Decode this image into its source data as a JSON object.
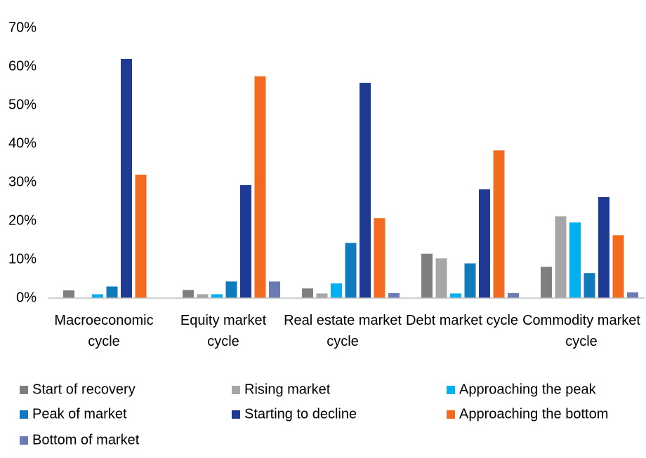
{
  "chart_data": {
    "type": "bar",
    "categories": [
      "Macroeconomic cycle",
      "Equity market cycle",
      "Real estate market cycle",
      "Debt market cycle",
      "Commodity market cycle"
    ],
    "series": [
      {
        "name": "Start of recovery",
        "color": "#7f7f7f",
        "values": [
          2,
          2.1,
          2.5,
          11.5,
          8.1
        ]
      },
      {
        "name": "Rising market",
        "color": "#a6a6a6",
        "values": [
          0,
          1,
          1.2,
          10.3,
          21.2
        ]
      },
      {
        "name": "Approaching the peak",
        "color": "#00b0f0",
        "values": [
          1,
          1,
          3.8,
          1.2,
          19.6
        ]
      },
      {
        "name": "Peak of market",
        "color": "#0f7bbd",
        "values": [
          3,
          4.3,
          14.3,
          9,
          6.5
        ]
      },
      {
        "name": "Starting to decline",
        "color": "#1f3a93",
        "values": [
          62,
          29.3,
          55.8,
          28.2,
          26.2
        ]
      },
      {
        "name": "Approaching the bottom",
        "color": "#f26b21",
        "values": [
          32,
          57.5,
          20.7,
          38.3,
          16.3
        ]
      },
      {
        "name": "Bottom of market",
        "color": "#6a7bb5",
        "values": [
          0,
          4.3,
          1.3,
          1.3,
          1.5
        ]
      }
    ],
    "ylim": [
      0,
      70
    ],
    "yticks": [
      {
        "value": 0,
        "label": "0%"
      },
      {
        "value": 10,
        "label": "10%"
      },
      {
        "value": 20,
        "label": "20%"
      },
      {
        "value": 30,
        "label": "30%"
      },
      {
        "value": 40,
        "label": "40%"
      },
      {
        "value": 50,
        "label": "50%"
      },
      {
        "value": 60,
        "label": "60%"
      },
      {
        "value": 70,
        "label": "70%"
      }
    ],
    "grid": false
  }
}
